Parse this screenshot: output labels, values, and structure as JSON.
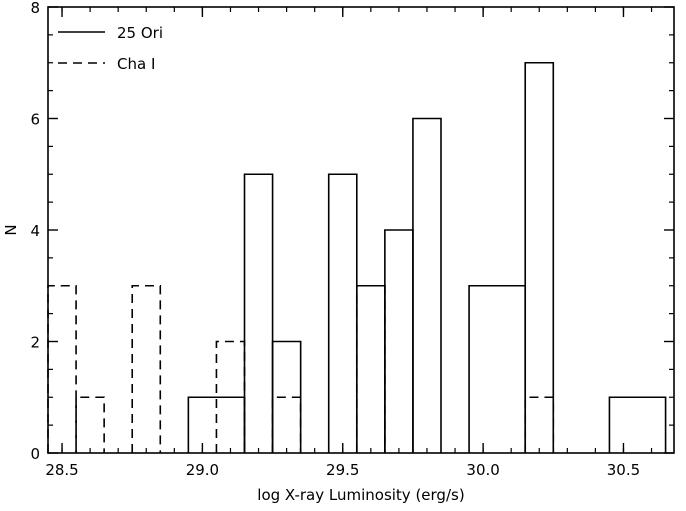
{
  "chart_data": {
    "type": "histogram",
    "xlabel": "log X-ray Luminosity (erg/s)",
    "ylabel": "N",
    "xlim": [
      28.45,
      30.68
    ],
    "ylim": [
      0,
      8
    ],
    "grid": false,
    "legend_position": "top-left",
    "x_ticks": [
      {
        "value": 28.5,
        "label": "28.5"
      },
      {
        "value": 29.0,
        "label": "29.0"
      },
      {
        "value": 29.5,
        "label": "29.5"
      },
      {
        "value": 30.0,
        "label": "30.0"
      },
      {
        "value": 30.5,
        "label": "30.5"
      }
    ],
    "y_ticks": [
      {
        "value": 0,
        "label": "0"
      },
      {
        "value": 2,
        "label": "2"
      },
      {
        "value": 4,
        "label": "4"
      },
      {
        "value": 6,
        "label": "6"
      },
      {
        "value": 8,
        "label": "8"
      }
    ],
    "series": [
      {
        "name": "25 Ori",
        "style": "solid",
        "bins": [
          {
            "x0": 28.95,
            "x1": 29.15,
            "count": 1
          },
          {
            "x0": 29.15,
            "x1": 29.25,
            "count": 5
          },
          {
            "x0": 29.25,
            "x1": 29.35,
            "count": 2
          },
          {
            "x0": 29.45,
            "x1": 29.55,
            "count": 5
          },
          {
            "x0": 29.55,
            "x1": 29.65,
            "count": 3
          },
          {
            "x0": 29.65,
            "x1": 29.75,
            "count": 4
          },
          {
            "x0": 29.75,
            "x1": 29.85,
            "count": 6
          },
          {
            "x0": 29.95,
            "x1": 30.15,
            "count": 3
          },
          {
            "x0": 30.15,
            "x1": 30.25,
            "count": 7
          },
          {
            "x0": 30.45,
            "x1": 30.65,
            "count": 1
          }
        ]
      },
      {
        "name": "Cha I",
        "style": "dashed",
        "bins": [
          {
            "x0": 28.45,
            "x1": 28.55,
            "count": 3
          },
          {
            "x0": 28.55,
            "x1": 28.65,
            "count": 1
          },
          {
            "x0": 28.75,
            "x1": 28.85,
            "count": 3
          },
          {
            "x0": 29.05,
            "x1": 29.15,
            "count": 2
          },
          {
            "x0": 29.25,
            "x1": 29.35,
            "count": 1
          },
          {
            "x0": 29.55,
            "x1": 29.65,
            "count": 3
          },
          {
            "x0": 30.15,
            "x1": 30.25,
            "count": 1
          }
        ]
      }
    ]
  }
}
